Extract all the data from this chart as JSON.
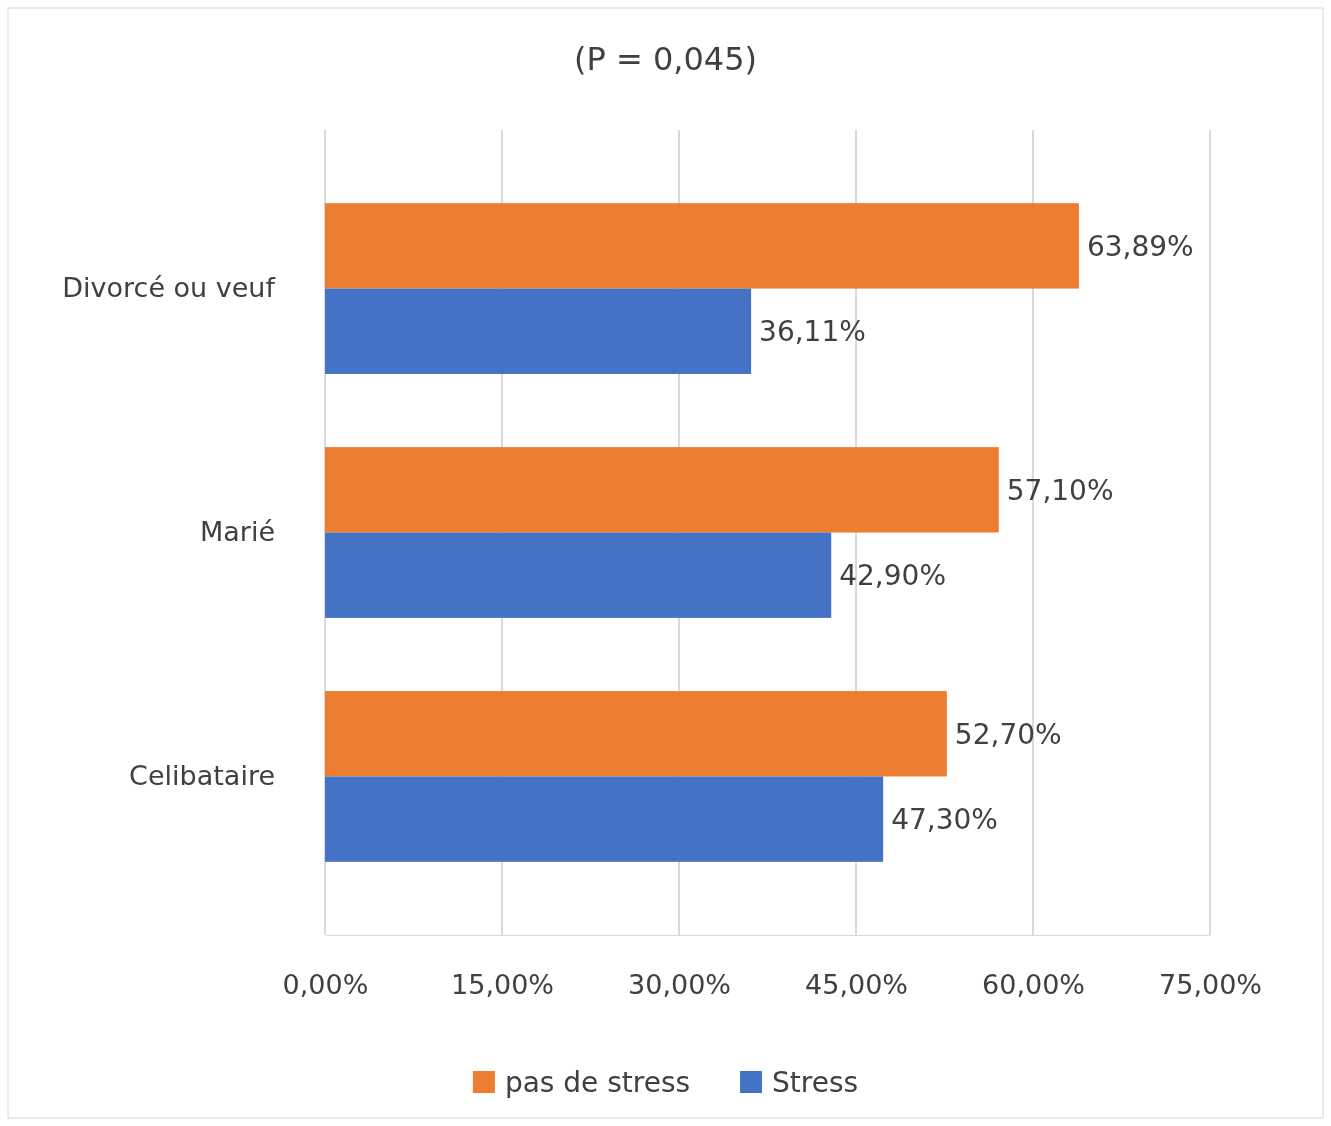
{
  "chart_data": {
    "type": "bar",
    "orientation": "horizontal",
    "title": "(P = 0,045)",
    "categories": [
      "Divorcé ou veuf",
      "Marié",
      "Celibataire"
    ],
    "series": [
      {
        "name": "pas de stress",
        "color": "#ed7d31",
        "values": [
          63.89,
          57.1,
          52.7
        ],
        "value_labels": [
          "63,89%",
          "57,10%",
          "52,70%"
        ]
      },
      {
        "name": "Stress",
        "color": "#4472c4",
        "values": [
          36.11,
          42.9,
          47.3
        ],
        "value_labels": [
          "36,11%",
          "42,90%",
          "47,30%"
        ]
      }
    ],
    "xlim": [
      0,
      75
    ],
    "xticks": [
      {
        "value": 0,
        "label": "0,00%"
      },
      {
        "value": 15,
        "label": "15,00%"
      },
      {
        "value": 30,
        "label": "30,00%"
      },
      {
        "value": 45,
        "label": "45,00%"
      },
      {
        "value": 60,
        "label": "60,00%"
      },
      {
        "value": 75,
        "label": "75,00%"
      }
    ],
    "grid": "x",
    "legend": "bottom"
  }
}
